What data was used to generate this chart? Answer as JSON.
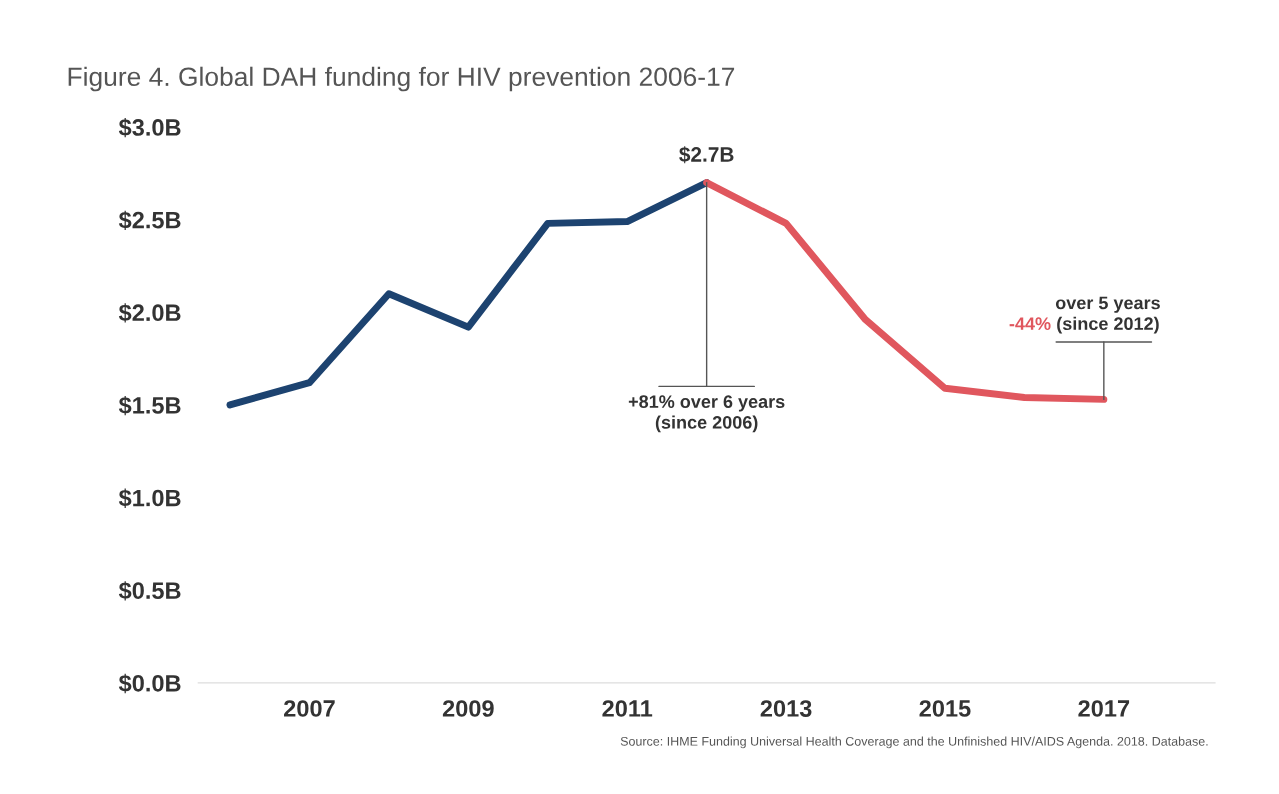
{
  "chart_data": {
    "type": "line",
    "title": "Figure 4. Global DAH funding for HIV prevention 2006-17",
    "series": [
      {
        "color": "#1d4370",
        "x": [
          2006,
          2007,
          2008,
          2009,
          2010,
          2011,
          2012
        ],
        "values": [
          1.5,
          1.62,
          2.1,
          1.92,
          2.48,
          2.49,
          2.7
        ],
        "value_labels": [
          null,
          null,
          null,
          null,
          null,
          null,
          "$2.7B"
        ]
      },
      {
        "color": "#e0575e",
        "x": [
          2012,
          2013,
          2014,
          2015,
          2016,
          2017
        ],
        "values": [
          2.7,
          2.48,
          1.96,
          1.59,
          1.54,
          1.53
        ]
      }
    ],
    "xlim": [
      2005.6,
      2018.4
    ],
    "xticks": [
      2007,
      2009,
      2011,
      2013,
      2015,
      2017
    ],
    "ylim": [
      0,
      3.0
    ],
    "yticks": [
      {
        "value": 0,
        "label": "$0.0B"
      },
      {
        "value": 0.5,
        "label": "$0.5B"
      },
      {
        "value": 1.0,
        "label": "$1.0B"
      },
      {
        "value": 1.5,
        "label": "$1.5B"
      },
      {
        "value": 2.0,
        "label": "$2.0B"
      },
      {
        "value": 2.5,
        "label": "$2.5B"
      },
      {
        "value": 3.0,
        "label": "$3.0B"
      }
    ],
    "annotations": [
      {
        "text": "+81% over 6 years\n(since 2006)",
        "x": 2012,
        "y": 2.7
      },
      "-44%",
      {
        "text": "over 5 years\n(since 2012)",
        "x": 2017,
        "y": 1.53
      },
      "Source: IHME Funding Universal Health Coverage and the Unfinished HIV/AIDS Agenda. 2018. Database."
    ],
    "grid": false,
    "legend": false,
    "marker": "none",
    "line_style": "solid"
  }
}
